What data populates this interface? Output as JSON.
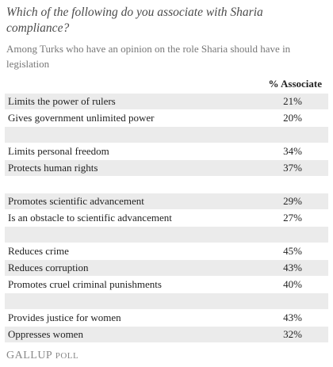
{
  "header": {
    "title": "Which of the following do you associate with Sharia compliance?",
    "subtitle": "Among Turks who have an opinion on the role Sharia should have in legislation"
  },
  "table": {
    "column_header": "% Associate",
    "groups": [
      {
        "rows": [
          [
            "Limits the power of rulers",
            "21%"
          ],
          [
            "Gives government unlimited power",
            "20%"
          ]
        ]
      },
      {
        "rows": [
          [
            "Limits personal freedom",
            "34%"
          ],
          [
            "Protects human rights",
            "37%"
          ]
        ]
      },
      {
        "rows": [
          [
            "Promotes scientific advancement",
            "29%"
          ],
          [
            "Is an obstacle to scientific advancement",
            "27%"
          ]
        ]
      },
      {
        "rows": [
          [
            "Reduces crime",
            "45%"
          ],
          [
            "Reduces corruption",
            "43%"
          ],
          [
            "Promotes cruel criminal punishments",
            "40%"
          ]
        ]
      },
      {
        "rows": [
          [
            "Provides justice for women",
            "43%"
          ],
          [
            "Oppresses women",
            "32%"
          ]
        ]
      }
    ]
  },
  "footer": {
    "brand": "GALLUP",
    "product": "POLL"
  }
}
